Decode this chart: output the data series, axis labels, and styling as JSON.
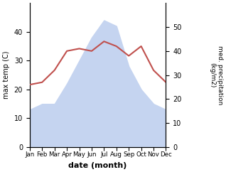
{
  "months": [
    1,
    2,
    3,
    4,
    5,
    6,
    7,
    8,
    9,
    10,
    11,
    12
  ],
  "month_labels": [
    "Jan",
    "Feb",
    "Mar",
    "Apr",
    "May",
    "Jun",
    "Jul",
    "Aug",
    "Sep",
    "Oct",
    "Nov",
    "Dec"
  ],
  "max_temp": [
    13,
    15,
    15,
    22,
    30,
    38,
    44,
    42,
    28,
    20,
    15,
    13
  ],
  "precipitation": [
    26,
    27,
    32,
    40,
    41,
    40,
    44,
    42,
    38,
    42,
    32,
    27
  ],
  "temp_color_fill": "#c5d4f0",
  "precip_color": "#c0504d",
  "ylabel_left": "max temp (C)",
  "ylabel_right": "med. precipitation\n(kg/m2)",
  "xlabel": "date (month)",
  "ylim_left": [
    0,
    50
  ],
  "ylim_right": [
    0,
    60
  ],
  "yticks_left": [
    0,
    10,
    20,
    30,
    40
  ],
  "yticks_right": [
    0,
    10,
    20,
    30,
    40,
    50
  ],
  "background_color": "#ffffff"
}
